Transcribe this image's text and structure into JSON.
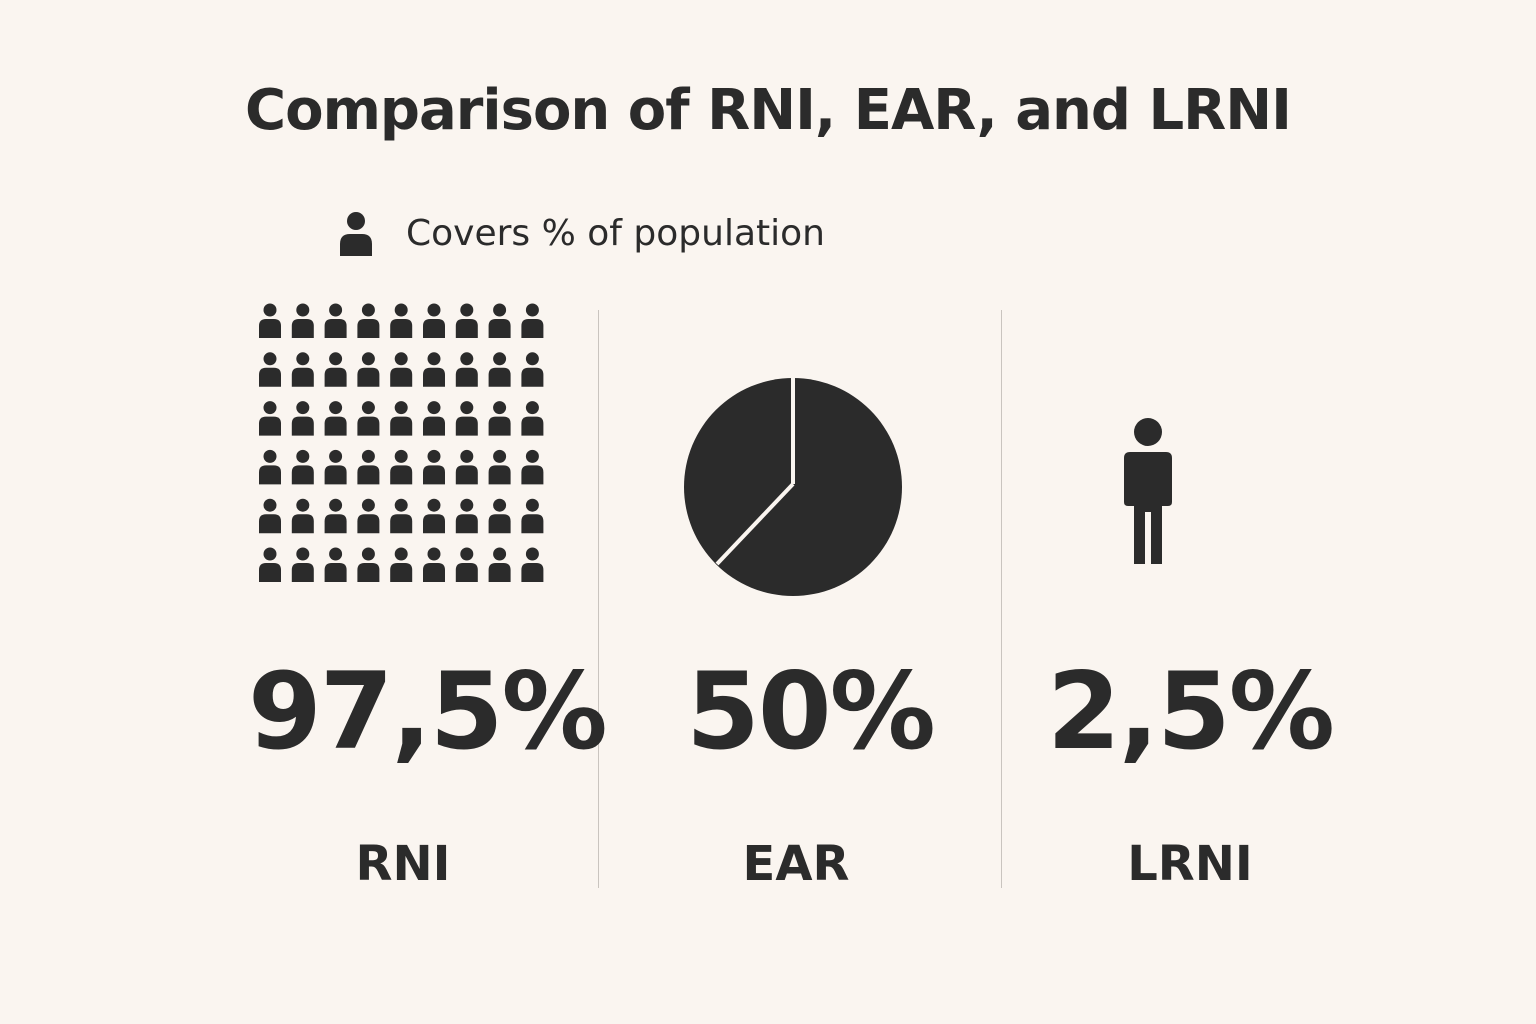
{
  "title": "Comparison of RNI, EAR, and LRNI",
  "legend": {
    "icon": "person-icon",
    "label": "Covers % of population"
  },
  "colors": {
    "background": "#faf5f0",
    "ink": "#2b2b2b",
    "divider": "#c9c4bf"
  },
  "columns": [
    {
      "value": "97,5%",
      "label": "RNI",
      "coverage": 97.5,
      "visual": "people-grid-icon"
    },
    {
      "value": "50%",
      "label": "EAR",
      "coverage": 50,
      "visual": "pie-icon"
    },
    {
      "value": "2,5%",
      "label": "LRNI",
      "coverage": 2.5,
      "visual": "single-person-icon"
    }
  ]
}
